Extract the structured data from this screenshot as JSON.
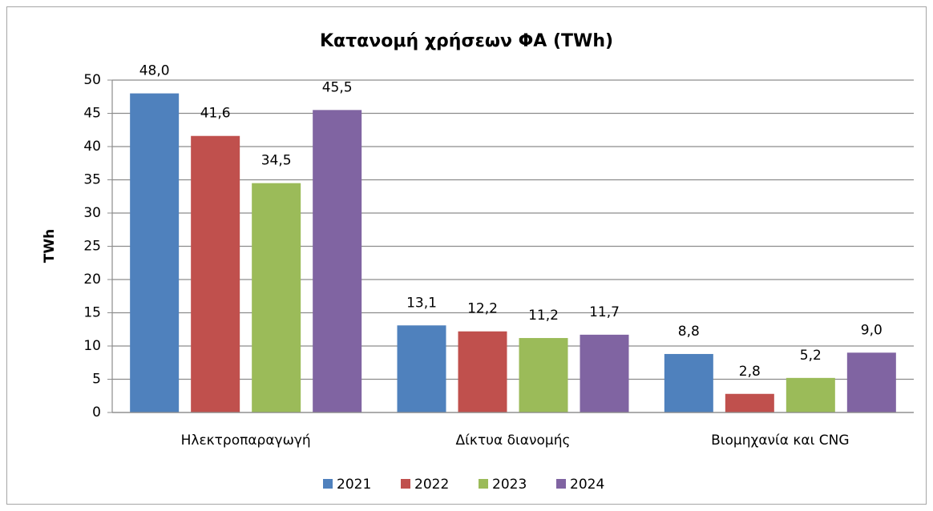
{
  "chart_data": {
    "type": "bar",
    "title": "Κατανομή χρήσεων ΦΑ (TWh)",
    "y_label": "TWh",
    "categories": [
      "Ηλεκτροπαραγωγή",
      "Δίκτυα διανομής",
      "Βιομηχανία και CNG"
    ],
    "series": [
      {
        "name": "2021",
        "color": "#4f81bd",
        "values": [
          48.0,
          13.1,
          8.8
        ],
        "value_labels": [
          "48,0",
          "13,1",
          "8,8"
        ]
      },
      {
        "name": "2022",
        "color": "#c0504d",
        "values": [
          41.6,
          12.2,
          2.8
        ],
        "value_labels": [
          "41,6",
          "12,2",
          "2,8"
        ]
      },
      {
        "name": "2023",
        "color": "#9bbb59",
        "values": [
          34.5,
          11.2,
          5.2
        ],
        "value_labels": [
          "34,5",
          "11,2",
          "5,2"
        ]
      },
      {
        "name": "2024",
        "color": "#8064a2",
        "values": [
          45.5,
          11.7,
          9.0
        ],
        "value_labels": [
          "45,5",
          "11,7",
          "9,0"
        ]
      }
    ],
    "ylim": [
      0,
      50
    ],
    "yticks": [
      0,
      5,
      10,
      15,
      20,
      25,
      30,
      35,
      40,
      45,
      50
    ],
    "grid": true,
    "legend": "bottom"
  }
}
